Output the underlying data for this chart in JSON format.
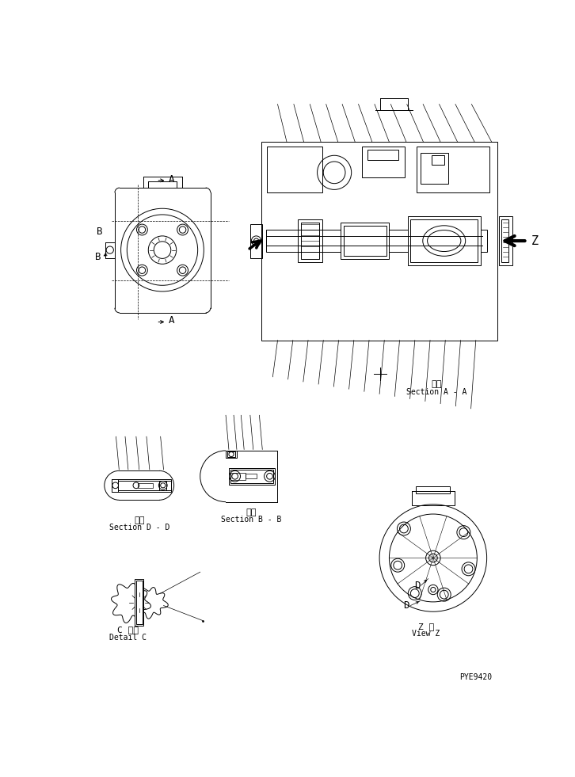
{
  "bg_color": "#ffffff",
  "line_color": "#000000",
  "fig_width": 7.26,
  "fig_height": 9.81,
  "dpi": 100,
  "labels": {
    "section_aa_jp": "断面",
    "section_aa": "Section A - A",
    "section_dd_jp": "断面",
    "section_dd": "Section D - D",
    "section_bb_jp": "断面",
    "section_bb": "Section B - B",
    "detail_c_jp": "C 詳細",
    "detail_c": "Detail C",
    "view_z_jp": "Z 視",
    "view_z": "View Z",
    "part_no": "PYE9420",
    "label_a": "A",
    "label_b": "B",
    "label_z": "Z",
    "label_d": "D",
    "label_c": "C"
  }
}
